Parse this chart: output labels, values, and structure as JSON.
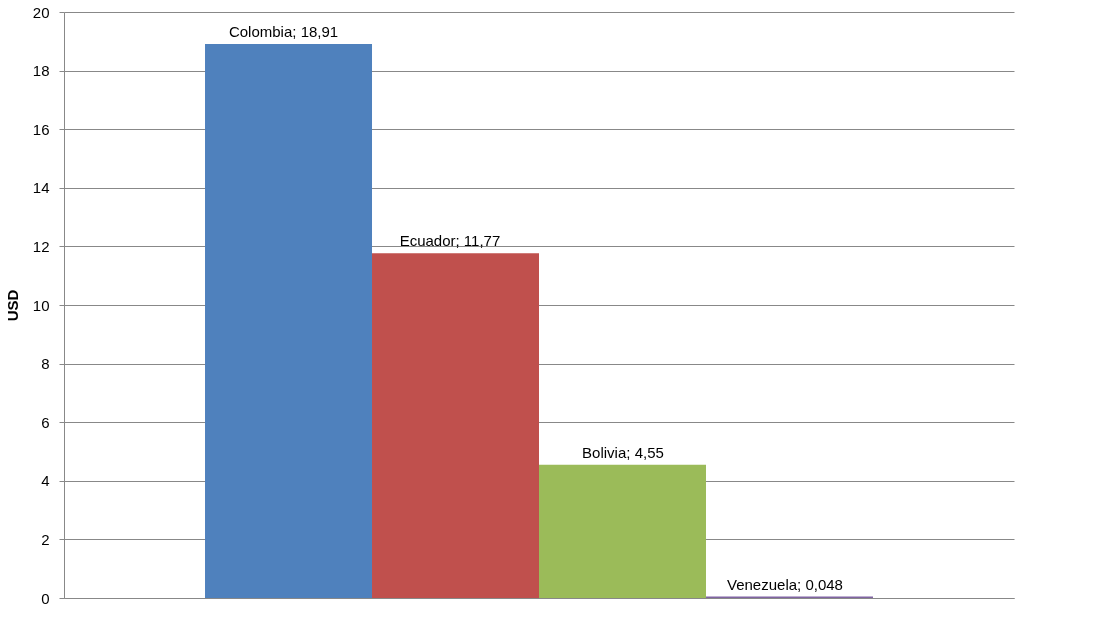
{
  "chart_data": {
    "type": "bar",
    "categories": [
      null
    ],
    "ylabel": "USD",
    "ylim": [
      0,
      20
    ],
    "yticks": [
      0,
      2,
      4,
      6,
      8,
      10,
      12,
      14,
      16,
      18,
      20
    ],
    "grid": "y",
    "tick_labels": "y",
    "legend": false,
    "series": [
      {
        "name": "Colombia",
        "color": "#4f81bd",
        "values": [
          18.91
        ],
        "value_labels": [
          "; 18,91"
        ]
      },
      {
        "name": "Ecuador",
        "color": "#c0504d",
        "values": [
          11.77
        ],
        "value_labels": [
          "; 11,77"
        ]
      },
      {
        "name": "Bolivia",
        "color": "#9bbb59",
        "values": [
          4.55
        ],
        "value_labels": [
          "; 4,55"
        ]
      },
      {
        "name": "Venezuela",
        "color": "#8064a2",
        "values": [
          0.048
        ],
        "value_labels": [
          "; 0,048"
        ]
      }
    ]
  }
}
